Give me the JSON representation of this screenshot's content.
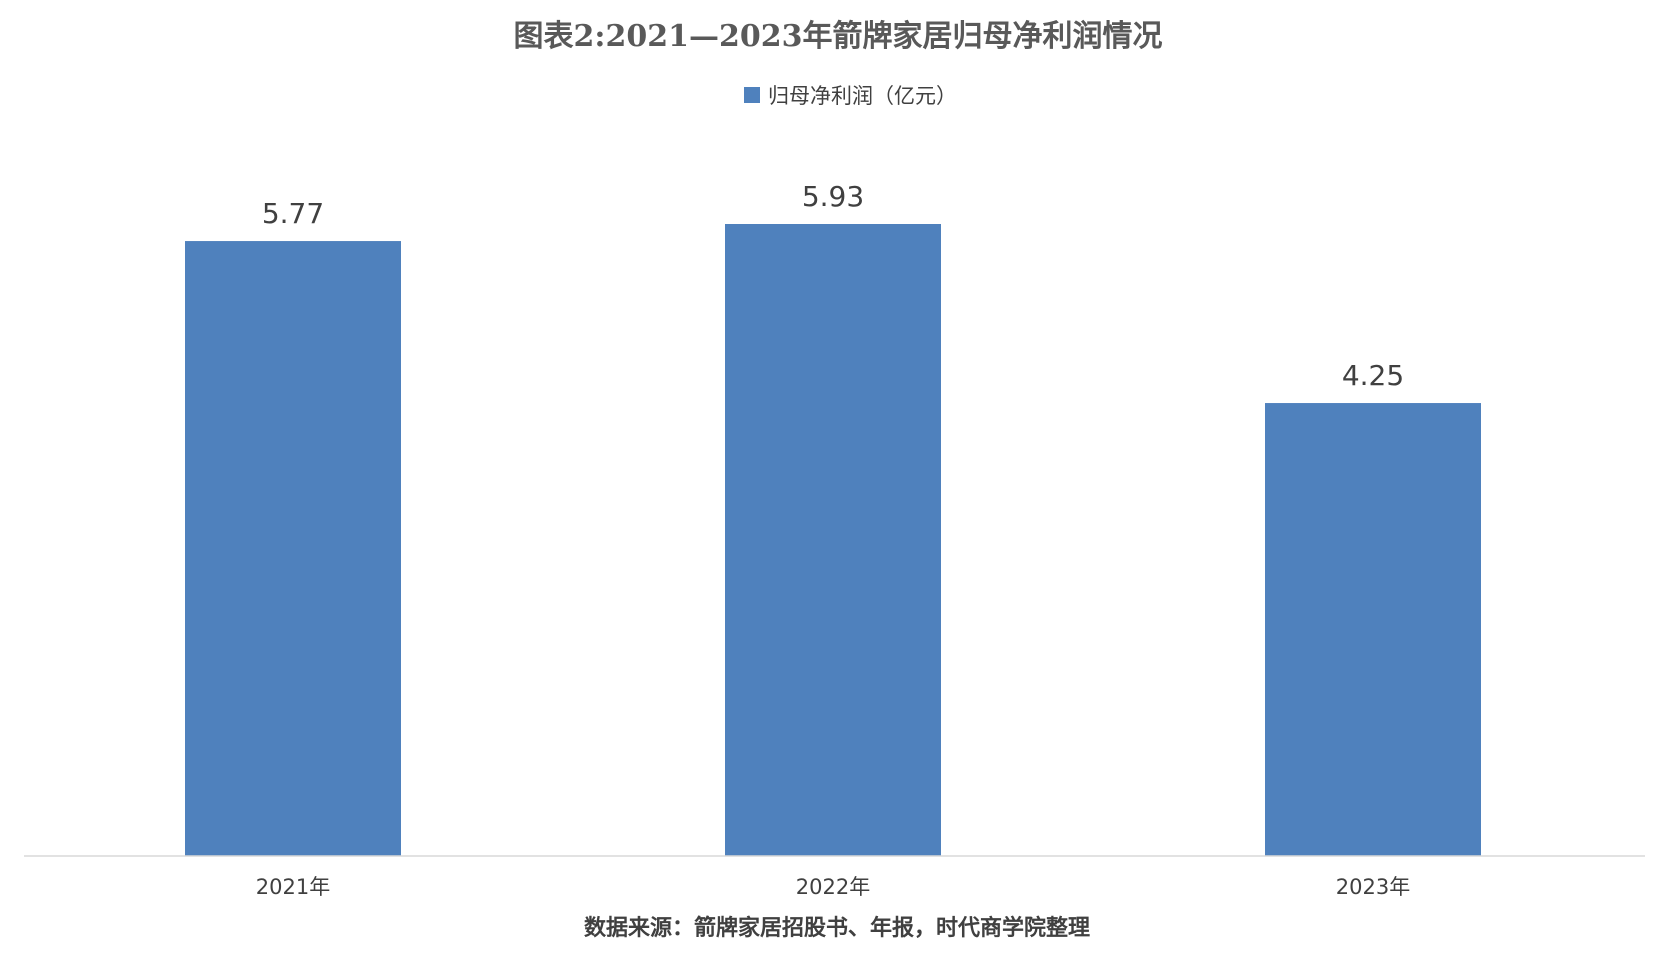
{
  "chart_data": {
    "type": "bar",
    "title": "图表2:2021—2023年箭牌家居归母净利润情况",
    "categories": [
      "2021年",
      "2022年",
      "2023年"
    ],
    "series": [
      {
        "name": "归母净利润（亿元）",
        "values": [
          5.77,
          5.93,
          4.25
        ],
        "color": "#4f81bd"
      }
    ],
    "ylim": [
      0,
      6
    ],
    "grid": false,
    "legend": "top-center",
    "source": "数据来源：箭牌家居招股书、年报，时代商学院整理"
  }
}
